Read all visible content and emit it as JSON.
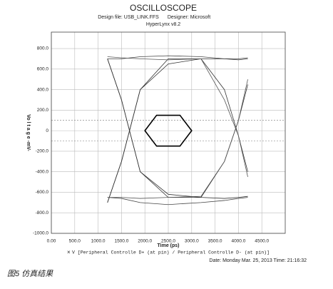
{
  "chart_data": {
    "type": "line",
    "title": "OSCILLOSCOPE",
    "design_file": "Design file: USB_LINK.FFS",
    "designer": "Designer: Microsoft",
    "software": "HyperLynx v8.2",
    "y_label": "Vo l t a g e -mV-",
    "x_label": "Time (ps)",
    "legend": "V [Peripheral Controlle D+ (at pin) / Peripheral Controlle D- (at pin)]",
    "timestamp": "Date: Monday Mar. 25, 2013   Time: 21:16:32",
    "caption": "图5 仿真结果",
    "xlim": [
      0,
      5000
    ],
    "ylim": [
      -1000,
      960
    ],
    "xticks": [
      {
        "value": 0,
        "label": "0.00"
      },
      {
        "value": 500,
        "label": "500.0"
      },
      {
        "value": 1000,
        "label": "1000.0"
      },
      {
        "value": 1500,
        "label": "1500.0"
      },
      {
        "value": 2000,
        "label": "2000.0"
      },
      {
        "value": 2500,
        "label": "2500.0"
      },
      {
        "value": 3000,
        "label": "3000.0"
      },
      {
        "value": 3500,
        "label": "3500.0"
      },
      {
        "value": 4000,
        "label": "4000.0"
      },
      {
        "value": 4500,
        "label": "4500.0"
      }
    ],
    "yticks": [
      {
        "value": 800,
        "label": "800.0"
      },
      {
        "value": 600,
        "label": "600.0"
      },
      {
        "value": 400,
        "label": "400.0"
      },
      {
        "value": 200,
        "label": "200.0"
      },
      0,
      {
        "value": -200,
        "label": "-200.0"
      },
      {
        "value": -400,
        "label": "-400.0"
      },
      {
        "value": -600,
        "label": "-600.0"
      },
      {
        "value": -800,
        "label": "-800.0"
      },
      {
        "value": -1000,
        "label": "-1000.0"
      }
    ],
    "grid": true,
    "hlines": [
      100,
      -100
    ],
    "x": [
      1200,
      1500,
      1900,
      2500,
      3200,
      3700,
      4000,
      4200
    ],
    "series": [
      {
        "color": "#333333",
        "values": [
          -700,
          -300,
          400,
          700,
          700,
          400,
          -50,
          -400
        ]
      },
      {
        "color": "#333333",
        "values": [
          700,
          300,
          -400,
          -650,
          -650,
          -300,
          100,
          450
        ]
      },
      {
        "color": "#444444",
        "values": [
          700,
          700,
          720,
          730,
          720,
          700,
          700,
          710
        ]
      },
      {
        "color": "#444444",
        "values": [
          -650,
          -660,
          -700,
          -720,
          -700,
          -680,
          -660,
          -650
        ]
      },
      {
        "color": "#333333",
        "values": [
          -700,
          -300,
          400,
          650,
          700,
          700,
          690,
          700
        ]
      },
      {
        "color": "#333333",
        "values": [
          700,
          300,
          -400,
          -620,
          -650,
          -660,
          -650,
          -640
        ]
      },
      {
        "color": "#555555",
        "values": [
          -650,
          -650,
          -660,
          -650,
          -640,
          -300,
          100,
          500
        ]
      },
      {
        "color": "#555555",
        "values": [
          720,
          710,
          700,
          690,
          700,
          300,
          -50,
          -450
        ]
      }
    ],
    "mask": {
      "color": "#000000",
      "x": [
        2000,
        2250,
        2750,
        3000,
        2750,
        2250
      ],
      "y": [
        0,
        150,
        150,
        0,
        -150,
        -150
      ]
    }
  }
}
